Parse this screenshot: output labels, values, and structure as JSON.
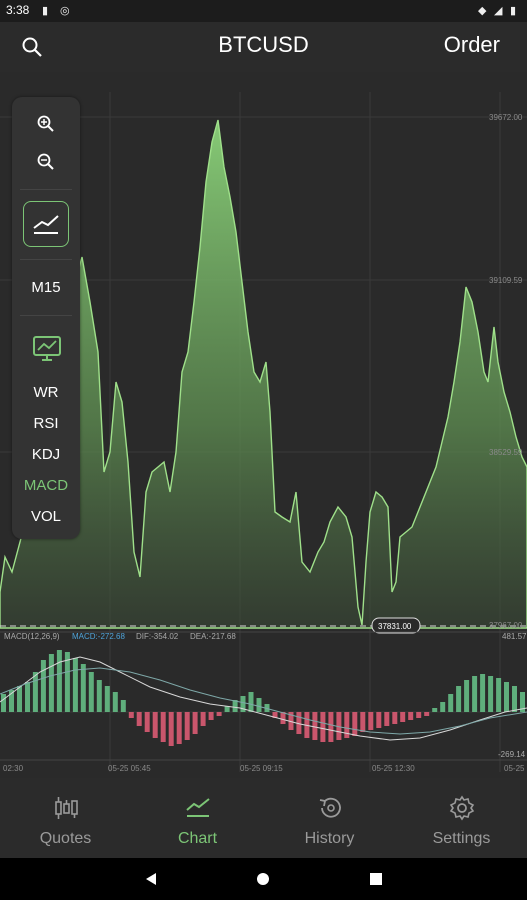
{
  "status_bar": {
    "time": "3:38"
  },
  "header": {
    "title": "BTCUSD",
    "order_label": "Order"
  },
  "side_panel": {
    "timeframe": "M15",
    "indicators": [
      "WR",
      "RSI",
      "KDJ",
      "MACD",
      "VOL"
    ],
    "active_indicator": "MACD"
  },
  "price_axis": [
    "39672.00",
    "39109.59",
    "38529.59",
    "37967.00"
  ],
  "current_price": "37831.00",
  "macd": {
    "params": "MACD(12,26,9)",
    "macd_label": "MACD:-272.68",
    "dif_label": "DIF:-354.02",
    "dea_label": "DEA:-217.68",
    "axis_top": "481.57",
    "axis_bottom": "-269.14"
  },
  "time_axis": [
    "02:30",
    "05-25 05:45",
    "05-25 09:15",
    "05-25 12:30",
    "05-25"
  ],
  "bottom_nav": [
    {
      "label": "Quotes",
      "icon": "candlestick-icon",
      "active": false
    },
    {
      "label": "Chart",
      "icon": "line-chart-icon",
      "active": true
    },
    {
      "label": "History",
      "icon": "history-icon",
      "active": false
    },
    {
      "label": "Settings",
      "icon": "gear-icon",
      "active": false
    }
  ],
  "colors": {
    "accent": "#7cc576",
    "bear": "#c9566c",
    "bull": "#5fae7c",
    "background": "#2a2a2a"
  }
}
